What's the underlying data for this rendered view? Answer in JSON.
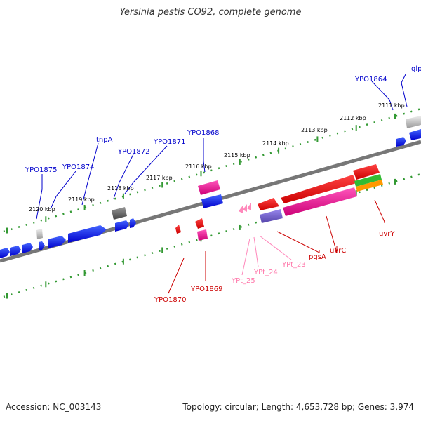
{
  "title": "Yersinia pestis CO92, complete genome",
  "footer": {
    "accession": "Accession: NC_003143",
    "summary": "Topology: circular; Length: 4,653,728 bp; Genes: 3,974"
  },
  "colors": {
    "forward": "#0000ee",
    "reverse": "#ee0000",
    "pseudo": "#888888",
    "rna": "#ff1493",
    "trna": "#ff88bb",
    "purple": "#7766cc",
    "green": "#33bb33",
    "orange": "#ff9900",
    "tick": "#339933"
  },
  "ticks": [
    {
      "label": "2111 kbp"
    },
    {
      "label": "2112 kbp"
    },
    {
      "label": "2113 kbp"
    },
    {
      "label": "2114 kbp"
    },
    {
      "label": "2115 kbp"
    },
    {
      "label": "2116 kbp"
    },
    {
      "label": "2117 kbp"
    },
    {
      "label": "2118 kbp"
    },
    {
      "label": "2119 kbp"
    },
    {
      "label": "2120 kbp"
    }
  ],
  "gene_labels": {
    "forward": [
      "glpM",
      "YPO1864",
      "YPO1868",
      "YPO1871",
      "YPO1872",
      "tnpA",
      "YPO1874",
      "YPO1875"
    ],
    "reverse": [
      "uvrY",
      "uvrC",
      "pgsA",
      "YPO1869",
      "YPO1870"
    ],
    "trna": [
      "YPt_23",
      "YPt_24",
      "YPt_25"
    ]
  }
}
